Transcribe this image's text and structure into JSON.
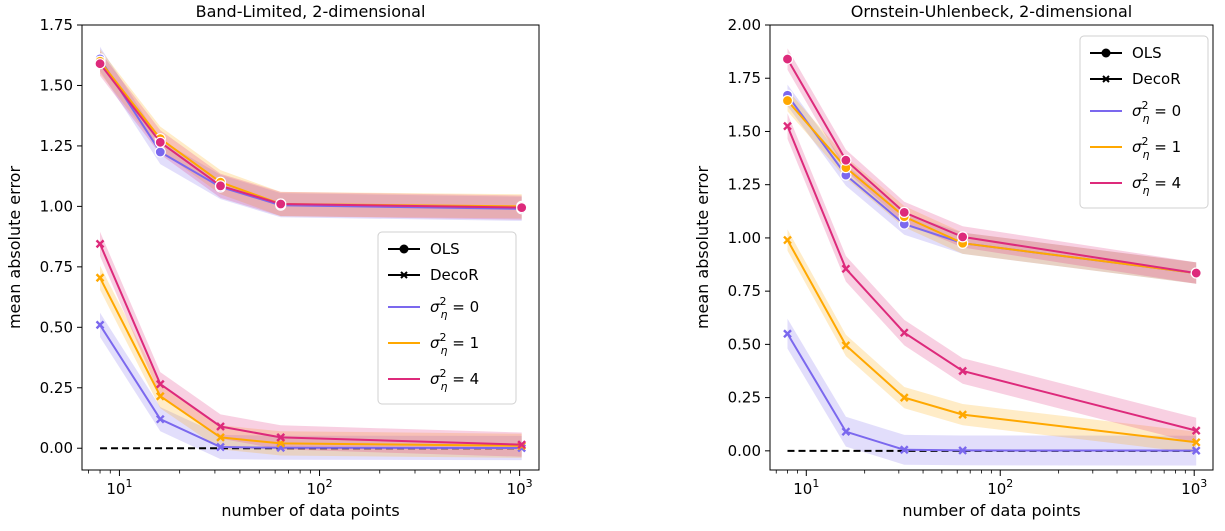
{
  "colors": {
    "s0": "#7b68ee",
    "s1": "#ffa800",
    "s4": "#dd2a7b",
    "baseline": "#000000"
  },
  "chart_data": [
    {
      "type": "line",
      "title": "Band-Limited, 2-dimensional",
      "xlabel": "number of data points",
      "ylabel": "mean absolute error",
      "xscale": "log",
      "xlim": [
        6.5,
        1250
      ],
      "ylim": [
        -0.09,
        1.75
      ],
      "xticks": [
        10,
        100,
        1000
      ],
      "xtick_labels": [
        "10^1",
        "10^2",
        "10^3"
      ],
      "yticks": [
        0.0,
        0.25,
        0.5,
        0.75,
        1.0,
        1.25,
        1.5,
        1.75
      ],
      "ytick_labels": [
        "0.00",
        "0.25",
        "0.50",
        "0.75",
        "1.00",
        "1.25",
        "1.50",
        "1.75"
      ],
      "x": [
        8,
        16,
        32,
        64,
        1024
      ],
      "legend": {
        "placement": "center-right",
        "entries": [
          "OLS",
          "DecoR",
          "σ_η² = 0",
          "σ_η² = 1",
          "σ_η² = 4"
        ]
      },
      "series": [
        {
          "name": "σ_η² = 0",
          "method": "OLS",
          "color_key": "s0",
          "values": [
            1.61,
            1.225,
            1.08,
            1.005,
            0.99
          ],
          "band": 0.05
        },
        {
          "name": "σ_η² = 1",
          "method": "OLS",
          "color_key": "s1",
          "values": [
            1.6,
            1.28,
            1.1,
            1.01,
            1.0
          ],
          "band": 0.05
        },
        {
          "name": "σ_η² = 4",
          "method": "OLS",
          "color_key": "s4",
          "values": [
            1.59,
            1.265,
            1.085,
            1.01,
            0.995
          ],
          "band": 0.05
        },
        {
          "name": "σ_η² = 0",
          "method": "DecoR",
          "color_key": "s0",
          "values": [
            0.51,
            0.12,
            0.005,
            0.002,
            0.001
          ],
          "band": 0.05
        },
        {
          "name": "σ_η² = 1",
          "method": "DecoR",
          "color_key": "s1",
          "values": [
            0.705,
            0.215,
            0.045,
            0.02,
            0.01
          ],
          "band": 0.05
        },
        {
          "name": "σ_η² = 4",
          "method": "DecoR",
          "color_key": "s4",
          "values": [
            0.845,
            0.265,
            0.09,
            0.045,
            0.015
          ],
          "band": 0.05
        }
      ],
      "baseline": 0.0
    },
    {
      "type": "line",
      "title": "Ornstein-Uhlenbeck, 2-dimensional",
      "xlabel": "number of data points",
      "ylabel": "mean absolute error",
      "xscale": "log",
      "xlim": [
        6.5,
        1250
      ],
      "ylim": [
        -0.09,
        2.0
      ],
      "xticks": [
        10,
        100,
        1000
      ],
      "xtick_labels": [
        "10^1",
        "10^2",
        "10^3"
      ],
      "yticks": [
        0.0,
        0.25,
        0.5,
        0.75,
        1.0,
        1.25,
        1.5,
        1.75,
        2.0
      ],
      "ytick_labels": [
        "0.00",
        "0.25",
        "0.50",
        "0.75",
        "1.00",
        "1.25",
        "1.50",
        "1.75",
        "2.00"
      ],
      "x": [
        8,
        16,
        32,
        64,
        1024
      ],
      "legend": {
        "placement": "top-right",
        "entries": [
          "OLS",
          "DecoR",
          "σ_η² = 0",
          "σ_η² = 1",
          "σ_η² = 4"
        ]
      },
      "series": [
        {
          "name": "σ_η² = 0",
          "method": "OLS",
          "color_key": "s0",
          "values": [
            1.67,
            1.295,
            1.065,
            0.975,
            0.835
          ],
          "band": 0.05
        },
        {
          "name": "σ_η² = 1",
          "method": "OLS",
          "color_key": "s1",
          "values": [
            1.645,
            1.33,
            1.1,
            0.975,
            0.835
          ],
          "band": 0.05
        },
        {
          "name": "σ_η² = 4",
          "method": "OLS",
          "color_key": "s4",
          "values": [
            1.84,
            1.365,
            1.12,
            1.005,
            0.835
          ],
          "band": 0.05
        },
        {
          "name": "σ_η² = 0",
          "method": "DecoR",
          "color_key": "s0",
          "values": [
            0.55,
            0.09,
            0.005,
            0.002,
            0.001
          ],
          "band": 0.07
        },
        {
          "name": "σ_η² = 1",
          "method": "DecoR",
          "color_key": "s1",
          "values": [
            0.99,
            0.495,
            0.25,
            0.17,
            0.04
          ],
          "band": 0.05
        },
        {
          "name": "σ_η² = 4",
          "method": "DecoR",
          "color_key": "s4",
          "values": [
            1.525,
            0.855,
            0.555,
            0.375,
            0.095
          ],
          "band": 0.06
        }
      ],
      "baseline": 0.0
    }
  ]
}
